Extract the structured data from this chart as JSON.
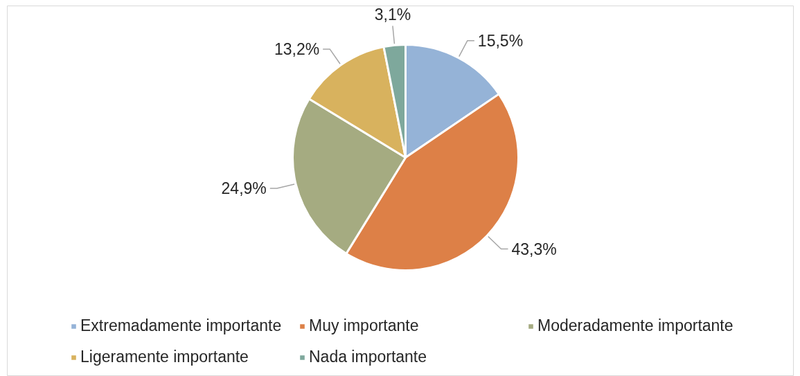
{
  "chart_data": {
    "type": "pie",
    "categories": [
      "Extremadamente importante",
      "Muy importante",
      "Moderadamente importante",
      "Ligeramente importante",
      "Nada importante"
    ],
    "values": [
      15.5,
      43.3,
      24.9,
      13.2,
      3.1
    ],
    "colors": [
      "#95b3d7",
      "#dd8047",
      "#a5ab81",
      "#d8b25e",
      "#7ea89c"
    ],
    "value_labels": [
      "15,5%",
      "43,3%",
      "24,9%",
      "13,2%",
      "3,1%"
    ],
    "legend": "bottom"
  }
}
